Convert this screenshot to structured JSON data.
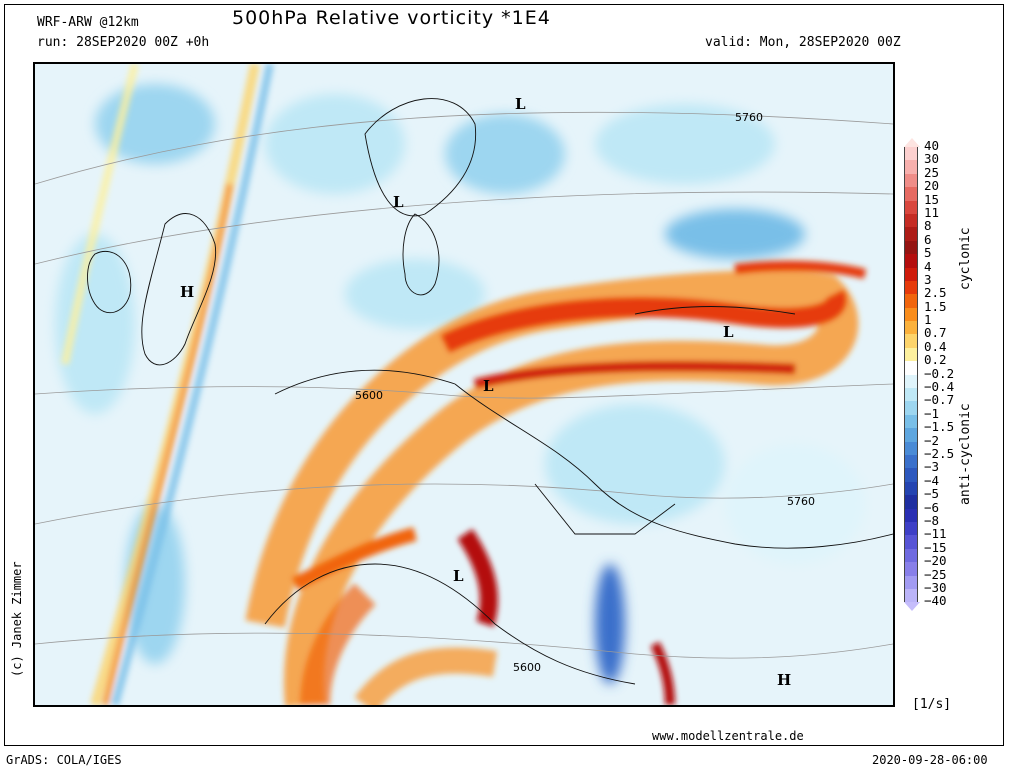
{
  "header": {
    "model": "WRF-ARW @12km",
    "title": "500hPa Relative vorticity *1E4",
    "run": "run: 28SEP2020 00Z +0h",
    "valid": "valid: Mon, 28SEP2020 00Z"
  },
  "colorbar": {
    "labels": [
      "40",
      "30",
      "25",
      "20",
      "15",
      "11",
      "8",
      "6",
      "5",
      "4",
      "3",
      "2.5",
      "1.5",
      "1",
      "0.7",
      "0.4",
      "0.2",
      "−0.2",
      "−0.4",
      "−0.7",
      "−1",
      "−1.5",
      "−2",
      "−2.5",
      "−3",
      "−4",
      "−5",
      "−6",
      "−8",
      "−11",
      "−15",
      "−20",
      "−25",
      "−30",
      "−40"
    ],
    "colors": [
      "#fcd0cf",
      "#f7b0ad",
      "#ef8d88",
      "#e66a62",
      "#d9473e",
      "#c52c24",
      "#ad1c17",
      "#951412",
      "#b40e0e",
      "#cf1b0b",
      "#e63a0b",
      "#f1650d",
      "#f98d1c",
      "#fbb13c",
      "#fdd46b",
      "#fdf09e",
      "#ffffff",
      "#dff4fb",
      "#bfe8f6",
      "#9dd6f0",
      "#79bfe8",
      "#5ea6df",
      "#4a8bd6",
      "#3a70cb",
      "#2d58be",
      "#2444b1",
      "#1f2fa1",
      "#2a2fb3",
      "#3e3fc6",
      "#5754d5",
      "#6f6ae0",
      "#887fe9",
      "#a29bf2",
      "#bbb4f8"
    ],
    "cyclonic_label": "cyclonic",
    "anticyclonic_label": "anti-cyclonic",
    "unit": "[1/s]"
  },
  "map": {
    "pressure_labels": [
      "5760",
      "5600",
      "5760",
      "5600"
    ],
    "centers": [
      "L",
      "L",
      "H",
      "L",
      "L",
      "L",
      "H"
    ]
  },
  "footer": {
    "credit": "(c) Janek Zimmer",
    "website": "www.modellzentrale.de",
    "software": "GrADS: COLA/IGES",
    "timestamp": "2020-09-28-06:00"
  }
}
